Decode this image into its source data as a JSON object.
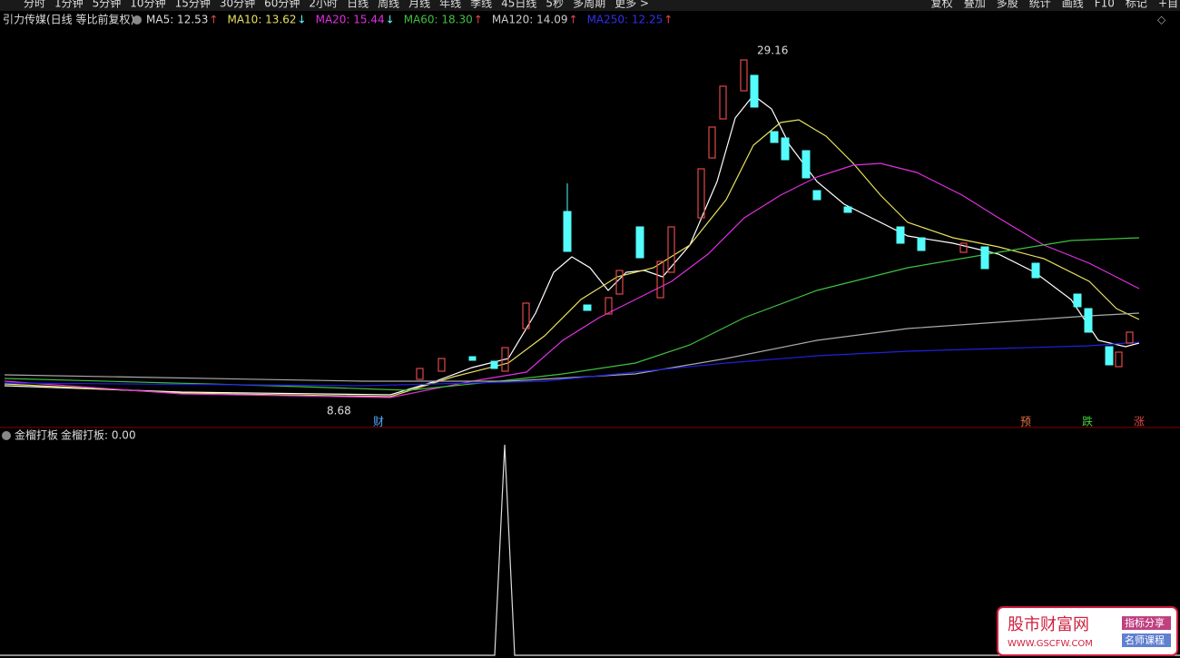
{
  "toolbar": {
    "periods": [
      "分时",
      "1分钟",
      "5分钟",
      "10分钟",
      "15分钟",
      "30分钟",
      "60分钟",
      "2小时",
      "日线",
      "周线",
      "月线",
      "年线",
      "季线",
      "45日线",
      "5秒",
      "多周期",
      "更多 >"
    ],
    "tools": [
      "复权",
      "叠加",
      "多股",
      "统计",
      "画线",
      "F10",
      "标记",
      "+自"
    ]
  },
  "header": {
    "title": "引力传媒(日线 等比前复权)",
    "indicators": [
      {
        "label": "MA5: 12.53",
        "arrow": "↑"
      },
      {
        "label": "MA10: 13.62",
        "arrow": "↓"
      },
      {
        "label": "MA20: 15.44",
        "arrow": "↓"
      },
      {
        "label": "MA60: 18.30",
        "arrow": "↑"
      },
      {
        "label": "MA120: 14.09",
        "arrow": "↑"
      },
      {
        "label": "MA250: 12.25",
        "arrow": "↑"
      }
    ]
  },
  "annotations": {
    "high": "29.16",
    "low": "8.68",
    "events": [
      "财",
      "预",
      "跌",
      "涨"
    ]
  },
  "sub_panel": {
    "title": "金榴打板",
    "value_label": "金榴打板: 0.00"
  },
  "watermark": {
    "site": "股市财富网",
    "url": "WWW.GSCFW.COM",
    "tags": [
      "指标分享",
      "名师课程"
    ]
  }
}
